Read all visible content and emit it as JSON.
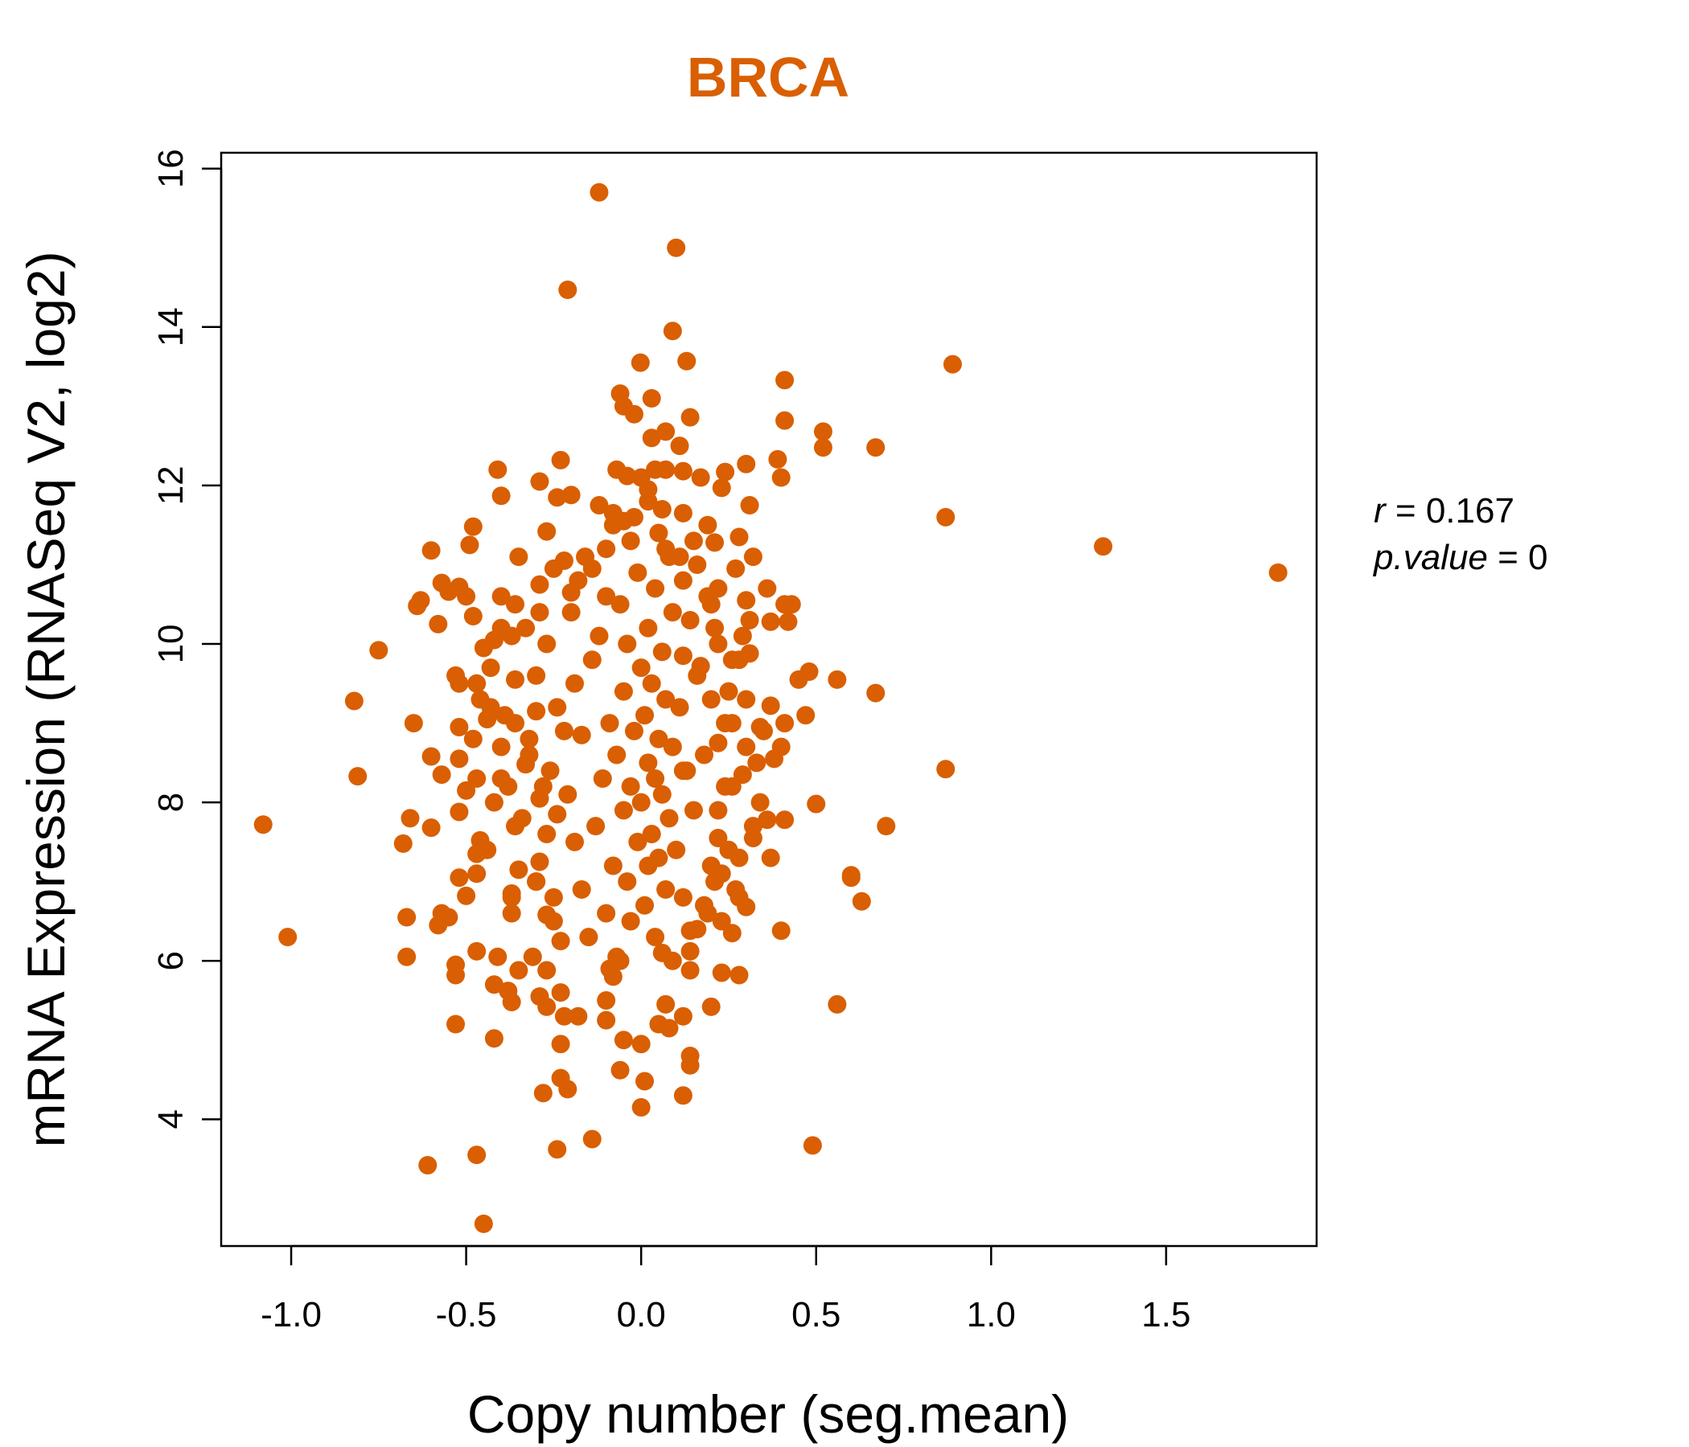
{
  "chart_data": {
    "type": "scatter",
    "title": "BRCA",
    "xlabel": "Copy number (seg.mean)",
    "ylabel": "mRNA Expression (RNASeq V2, log2)",
    "xlim": [
      -1.2,
      1.93
    ],
    "ylim": [
      2.4,
      16.2
    ],
    "x_ticks": [
      -1.0,
      -0.5,
      0.0,
      0.5,
      1.0,
      1.5
    ],
    "x_tick_labels": [
      "-1.0",
      "-0.5",
      "0.0",
      "0.5",
      "1.0",
      "1.5"
    ],
    "y_ticks": [
      4,
      6,
      8,
      10,
      12,
      14,
      16
    ],
    "y_tick_labels": [
      "4",
      "6",
      "8",
      "10",
      "12",
      "14",
      "16"
    ],
    "point_color": "#D95F02",
    "title_color": "#D95F02",
    "grid": false,
    "stats": {
      "r_label": "r",
      "r": "0.167",
      "p_label": "p.value",
      "p": "0"
    },
    "points": [
      [
        -0.12,
        15.7
      ],
      [
        0.1,
        15.0
      ],
      [
        -0.21,
        14.47
      ],
      [
        0.09,
        13.95
      ],
      [
        0.13,
        13.57
      ],
      [
        0.89,
        13.53
      ],
      [
        -0.002,
        13.55
      ],
      [
        0.41,
        13.33
      ],
      [
        -0.06,
        13.16
      ],
      [
        0.03,
        13.1
      ],
      [
        -0.05,
        13.0
      ],
      [
        -0.02,
        12.9
      ],
      [
        0.14,
        12.86
      ],
      [
        0.41,
        12.82
      ],
      [
        0.52,
        12.68
      ],
      [
        0.03,
        12.6
      ],
      [
        0.07,
        12.68
      ],
      [
        0.11,
        12.5
      ],
      [
        0.52,
        12.48
      ],
      [
        0.67,
        12.48
      ],
      [
        0.39,
        12.33
      ],
      [
        -0.23,
        12.32
      ],
      [
        0.3,
        12.27
      ],
      [
        -0.41,
        12.2
      ],
      [
        -0.07,
        12.2
      ],
      [
        0.04,
        12.2
      ],
      [
        0.07,
        12.2
      ],
      [
        -0.04,
        12.12
      ],
      [
        0.12,
        12.18
      ],
      [
        0.17,
        12.1
      ],
      [
        0.24,
        12.17
      ],
      [
        0.4,
        12.1
      ],
      [
        -0.29,
        12.05
      ],
      [
        0.02,
        11.95
      ],
      [
        -0.4,
        11.87
      ],
      [
        -0.24,
        11.85
      ],
      [
        -0.2,
        11.88
      ],
      [
        0.23,
        11.97
      ],
      [
        0.31,
        11.75
      ],
      [
        0.87,
        11.6
      ],
      [
        -0.12,
        11.75
      ],
      [
        -0.08,
        11.65
      ],
      [
        -0.05,
        11.55
      ],
      [
        0.06,
        11.7
      ],
      [
        0.12,
        11.65
      ],
      [
        -0.48,
        11.48
      ],
      [
        -0.27,
        11.42
      ],
      [
        0.19,
        11.5
      ],
      [
        0.28,
        11.35
      ],
      [
        1.32,
        11.23
      ],
      [
        -0.6,
        11.18
      ],
      [
        -0.49,
        11.25
      ],
      [
        0.21,
        11.28
      ],
      [
        -0.1,
        11.2
      ],
      [
        0.11,
        11.1
      ],
      [
        -0.35,
        11.1
      ],
      [
        0.32,
        11.1
      ],
      [
        -0.25,
        10.95
      ],
      [
        -0.22,
        11.05
      ],
      [
        -0.14,
        10.95
      ],
      [
        0.16,
        11.0
      ],
      [
        0.27,
        10.95
      ],
      [
        1.82,
        10.9
      ],
      [
        -0.57,
        10.77
      ],
      [
        -0.52,
        10.72
      ],
      [
        -0.29,
        10.75
      ],
      [
        -0.5,
        10.6
      ],
      [
        -0.4,
        10.6
      ],
      [
        -0.63,
        10.55
      ],
      [
        -0.64,
        10.48
      ],
      [
        0.36,
        10.7
      ],
      [
        0.22,
        10.7
      ],
      [
        -0.2,
        10.65
      ],
      [
        0.41,
        10.5
      ],
      [
        0.3,
        10.55
      ],
      [
        0.2,
        10.5
      ],
      [
        -0.36,
        10.5
      ],
      [
        -0.55,
        10.66
      ],
      [
        0.43,
        10.5
      ],
      [
        -0.29,
        10.4
      ],
      [
        -0.48,
        10.35
      ],
      [
        -0.58,
        10.25
      ],
      [
        0.42,
        10.28
      ],
      [
        0.37,
        10.28
      ],
      [
        -0.4,
        10.2
      ],
      [
        -0.37,
        10.1
      ],
      [
        -0.42,
        10.05
      ],
      [
        0.29,
        10.1
      ],
      [
        0.22,
        10.0
      ],
      [
        -0.75,
        9.92
      ],
      [
        -0.45,
        9.95
      ],
      [
        -0.27,
        10.0
      ],
      [
        0.31,
        9.88
      ],
      [
        0.12,
        9.85
      ],
      [
        0.26,
        9.8
      ],
      [
        -0.43,
        9.7
      ],
      [
        0.48,
        9.65
      ],
      [
        0.17,
        9.72
      ],
      [
        0.45,
        9.55
      ],
      [
        -0.53,
        9.6
      ],
      [
        -0.52,
        9.5
      ],
      [
        0.56,
        9.55
      ],
      [
        -0.36,
        9.55
      ],
      [
        -0.47,
        9.5
      ],
      [
        -0.46,
        9.3
      ],
      [
        0.67,
        9.38
      ],
      [
        0.3,
        9.3
      ],
      [
        0.25,
        9.4
      ],
      [
        -0.82,
        9.28
      ],
      [
        0.37,
        9.22
      ],
      [
        -0.39,
        9.1
      ],
      [
        -0.3,
        9.15
      ],
      [
        -0.65,
        9.0
      ],
      [
        0.47,
        9.1
      ],
      [
        0.41,
        9.0
      ],
      [
        -0.52,
        8.95
      ],
      [
        -0.44,
        9.05
      ],
      [
        0.26,
        9.0
      ],
      [
        0.34,
        8.95
      ],
      [
        -0.48,
        8.8
      ],
      [
        -0.32,
        8.8
      ],
      [
        -0.17,
        8.85
      ],
      [
        0.22,
        8.75
      ],
      [
        0.4,
        8.7
      ],
      [
        -0.6,
        8.58
      ],
      [
        -0.52,
        8.55
      ],
      [
        0.38,
        8.55
      ],
      [
        -0.33,
        8.48
      ],
      [
        0.33,
        8.5
      ],
      [
        0.87,
        8.42
      ],
      [
        -0.57,
        8.35
      ],
      [
        -0.81,
        8.33
      ],
      [
        -0.47,
        8.3
      ],
      [
        -0.4,
        8.3
      ],
      [
        0.29,
        8.35
      ],
      [
        0.12,
        8.4
      ],
      [
        -0.5,
        8.15
      ],
      [
        -0.28,
        8.2
      ],
      [
        0.24,
        8.2
      ],
      [
        -0.42,
        8.0
      ],
      [
        -0.29,
        8.05
      ],
      [
        0.5,
        7.98
      ],
      [
        0.34,
        8.0
      ],
      [
        -0.52,
        7.88
      ],
      [
        -0.24,
        7.85
      ],
      [
        -0.66,
        7.8
      ],
      [
        0.41,
        7.78
      ],
      [
        0.36,
        7.78
      ],
      [
        0.7,
        7.7
      ],
      [
        -1.08,
        7.72
      ],
      [
        -0.6,
        7.68
      ],
      [
        -0.36,
        7.7
      ],
      [
        0.32,
        7.55
      ],
      [
        -0.46,
        7.52
      ],
      [
        0.22,
        7.55
      ],
      [
        -0.68,
        7.48
      ],
      [
        -0.47,
        7.35
      ],
      [
        0.28,
        7.3
      ],
      [
        0.37,
        7.3
      ],
      [
        -0.29,
        7.25
      ],
      [
        -0.35,
        7.15
      ],
      [
        -0.47,
        7.1
      ],
      [
        0.6,
        7.08
      ],
      [
        0.6,
        7.05
      ],
      [
        -0.52,
        7.05
      ],
      [
        -0.3,
        7.0
      ],
      [
        0.21,
        7.0
      ],
      [
        -0.37,
        6.85
      ],
      [
        -0.5,
        6.82
      ],
      [
        -0.37,
        6.8
      ],
      [
        0.28,
        6.8
      ],
      [
        0.63,
        6.75
      ],
      [
        0.3,
        6.68
      ],
      [
        -0.37,
        6.6
      ],
      [
        -0.57,
        6.6
      ],
      [
        -0.67,
        6.55
      ],
      [
        -0.55,
        6.55
      ],
      [
        0.19,
        6.6
      ],
      [
        -0.27,
        6.58
      ],
      [
        -0.58,
        6.45
      ],
      [
        0.23,
        6.5
      ],
      [
        -0.25,
        6.5
      ],
      [
        0.4,
        6.38
      ],
      [
        0.14,
        6.38
      ],
      [
        -1.01,
        6.3
      ],
      [
        0.26,
        6.35
      ],
      [
        -0.23,
        6.25
      ],
      [
        -0.47,
        6.12
      ],
      [
        -0.41,
        6.05
      ],
      [
        -0.67,
        6.05
      ],
      [
        0.14,
        6.12
      ],
      [
        -0.53,
        5.95
      ],
      [
        -0.31,
        6.05
      ],
      [
        -0.07,
        6.05
      ],
      [
        -0.53,
        5.82
      ],
      [
        -0.35,
        5.88
      ],
      [
        0.23,
        5.85
      ],
      [
        0.28,
        5.82
      ],
      [
        -0.27,
        5.88
      ],
      [
        0.14,
        5.88
      ],
      [
        -0.42,
        5.7
      ],
      [
        -0.38,
        5.62
      ],
      [
        -0.23,
        5.6
      ],
      [
        -0.29,
        5.55
      ],
      [
        -0.08,
        5.8
      ],
      [
        -0.37,
        5.48
      ],
      [
        0.2,
        5.42
      ],
      [
        0.56,
        5.45
      ],
      [
        -0.27,
        5.42
      ],
      [
        -0.1,
        5.5
      ],
      [
        0.07,
        5.45
      ],
      [
        -0.22,
        5.3
      ],
      [
        -0.18,
        5.3
      ],
      [
        -0.1,
        5.25
      ],
      [
        0.12,
        5.3
      ],
      [
        -0.53,
        5.2
      ],
      [
        0.05,
        5.2
      ],
      [
        0.08,
        5.15
      ],
      [
        -0.42,
        5.02
      ],
      [
        -0.23,
        4.95
      ],
      [
        0.0,
        4.95
      ],
      [
        -0.05,
        5.0
      ],
      [
        0.14,
        4.8
      ],
      [
        0.14,
        4.68
      ],
      [
        -0.06,
        4.62
      ],
      [
        -0.23,
        4.52
      ],
      [
        0.01,
        4.48
      ],
      [
        -0.21,
        4.38
      ],
      [
        -0.28,
        4.33
      ],
      [
        0.12,
        4.3
      ],
      [
        0.0,
        4.15
      ],
      [
        -0.14,
        3.75
      ],
      [
        0.49,
        3.67
      ],
      [
        -0.24,
        3.62
      ],
      [
        -0.47,
        3.55
      ],
      [
        -0.61,
        3.42
      ],
      [
        -0.45,
        2.68
      ],
      [
        0.02,
        11.8
      ],
      [
        0.05,
        11.4
      ],
      [
        -0.03,
        11.3
      ],
      [
        0.08,
        11.1
      ],
      [
        -0.01,
        10.9
      ],
      [
        0.04,
        10.7
      ],
      [
        -0.06,
        10.5
      ],
      [
        0.09,
        10.4
      ],
      [
        0.02,
        10.2
      ],
      [
        -0.04,
        10.0
      ],
      [
        0.06,
        9.9
      ],
      [
        0.0,
        9.7
      ],
      [
        0.03,
        9.5
      ],
      [
        -0.05,
        9.4
      ],
      [
        0.07,
        9.3
      ],
      [
        0.01,
        9.1
      ],
      [
        -0.02,
        8.9
      ],
      [
        0.05,
        8.8
      ],
      [
        0.09,
        8.7
      ],
      [
        -0.07,
        8.6
      ],
      [
        0.02,
        8.5
      ],
      [
        0.04,
        8.3
      ],
      [
        -0.03,
        8.2
      ],
      [
        0.06,
        8.1
      ],
      [
        0.0,
        8.0
      ],
      [
        -0.05,
        7.9
      ],
      [
        0.08,
        7.8
      ],
      [
        0.03,
        7.6
      ],
      [
        -0.01,
        7.5
      ],
      [
        0.05,
        7.3
      ],
      [
        0.02,
        7.2
      ],
      [
        -0.04,
        7.0
      ],
      [
        0.07,
        6.9
      ],
      [
        0.01,
        6.7
      ],
      [
        -0.03,
        6.5
      ],
      [
        0.04,
        6.3
      ],
      [
        0.06,
        6.1
      ],
      [
        -0.06,
        6.0
      ],
      [
        0.12,
        10.8
      ],
      [
        -0.1,
        10.6
      ],
      [
        0.14,
        10.3
      ],
      [
        -0.12,
        10.1
      ],
      [
        0.16,
        9.6
      ],
      [
        -0.14,
        9.8
      ],
      [
        0.11,
        9.2
      ],
      [
        -0.09,
        9.0
      ],
      [
        0.13,
        8.4
      ],
      [
        -0.11,
        8.3
      ],
      [
        0.15,
        7.9
      ],
      [
        -0.13,
        7.7
      ],
      [
        0.1,
        7.4
      ],
      [
        -0.08,
        7.2
      ],
      [
        0.12,
        6.8
      ],
      [
        -0.1,
        6.6
      ],
      [
        -0.18,
        10.8
      ],
      [
        0.19,
        10.6
      ],
      [
        -0.2,
        10.4
      ],
      [
        0.21,
        10.2
      ],
      [
        -0.19,
        9.5
      ],
      [
        0.2,
        9.3
      ],
      [
        -0.22,
        8.9
      ],
      [
        0.18,
        8.6
      ],
      [
        -0.21,
        8.1
      ],
      [
        0.22,
        7.9
      ],
      [
        -0.19,
        7.5
      ],
      [
        0.2,
        7.2
      ],
      [
        -0.17,
        6.9
      ],
      [
        0.18,
        6.7
      ],
      [
        -0.24,
        9.2
      ],
      [
        0.24,
        9.0
      ],
      [
        -0.26,
        8.4
      ],
      [
        0.26,
        8.2
      ],
      [
        -0.27,
        7.6
      ],
      [
        0.25,
        7.4
      ],
      [
        -0.3,
        9.6
      ],
      [
        0.28,
        9.8
      ],
      [
        -0.32,
        8.6
      ],
      [
        0.3,
        8.7
      ],
      [
        -0.34,
        7.8
      ],
      [
        0.32,
        7.7
      ],
      [
        -0.33,
        10.2
      ],
      [
        0.31,
        10.3
      ],
      [
        -0.36,
        9.0
      ],
      [
        0.35,
        8.9
      ],
      [
        -0.38,
        8.2
      ],
      [
        -0.44,
        7.4
      ],
      [
        -0.4,
        8.7
      ],
      [
        -0.43,
        9.2
      ],
      [
        -0.3,
        7.0
      ],
      [
        0.27,
        6.9
      ],
      [
        -0.25,
        6.8
      ],
      [
        0.23,
        7.1
      ],
      [
        -0.15,
        6.3
      ],
      [
        0.16,
        6.4
      ],
      [
        -0.09,
        5.9
      ],
      [
        0.09,
        6.0
      ],
      [
        -0.16,
        11.1
      ],
      [
        0.15,
        11.3
      ],
      [
        -0.08,
        11.5
      ],
      [
        0.07,
        11.2
      ],
      [
        -0.02,
        11.6
      ],
      [
        0.0,
        12.1
      ]
    ]
  }
}
